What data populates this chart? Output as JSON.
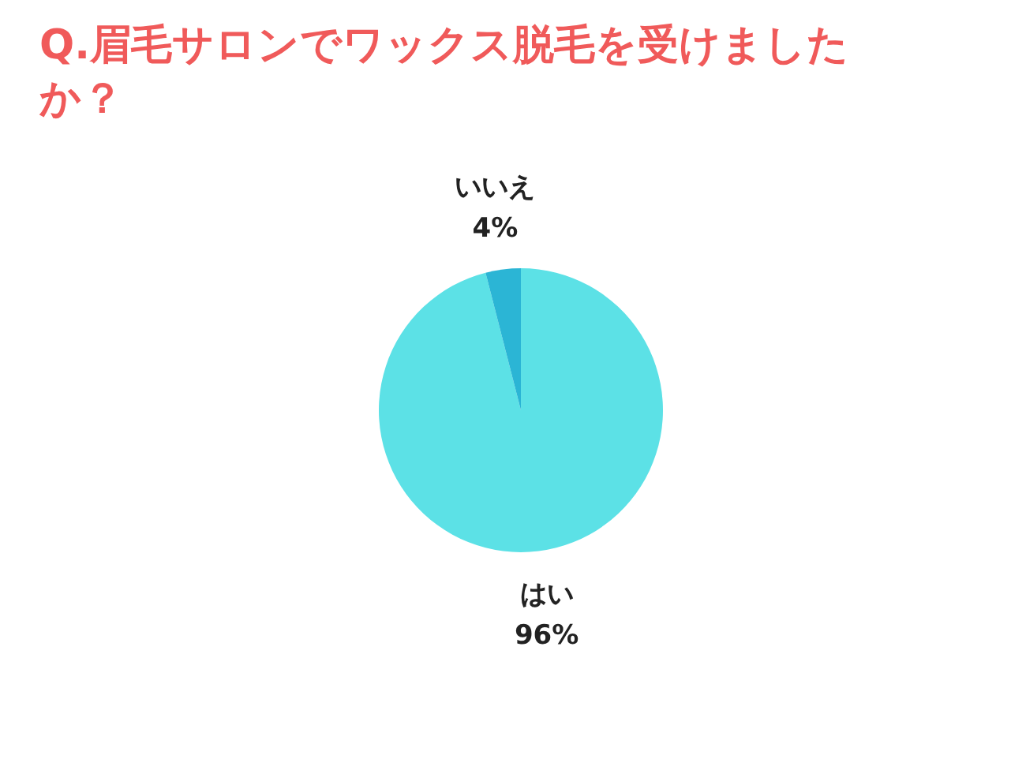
{
  "chart_data": {
    "type": "pie",
    "title": "Q.眉毛サロンでワックス脱毛を受けましたか？",
    "categories": [
      "はい",
      "いいえ"
    ],
    "values": [
      96,
      4
    ],
    "colors": [
      "#5ce1e6",
      "#2bb5d5"
    ],
    "value_labels": [
      "96%",
      "4%"
    ]
  }
}
